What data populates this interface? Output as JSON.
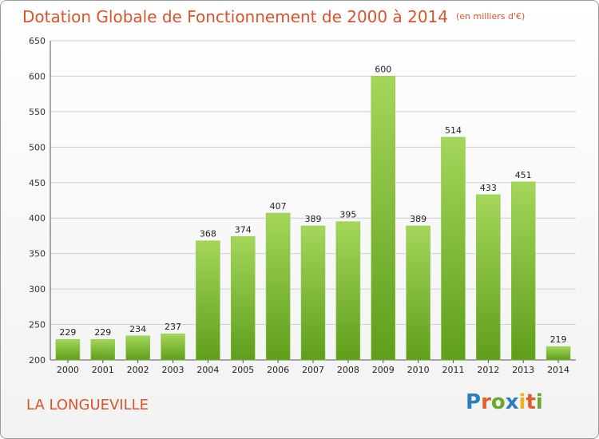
{
  "header": {
    "title": "Dotation Globale de Fonctionnement de 2000 à 2014",
    "unit": "(en milliers d'€)"
  },
  "footer": {
    "commune": "LA LONGUEVILLE",
    "logo": "Proxiti"
  },
  "colors": {
    "bar_top": "#a4d65a",
    "bar_bottom": "#5f9e1b",
    "title": "#d9542c",
    "grid": "#d0d0d0"
  },
  "chart_data": {
    "type": "bar",
    "categories": [
      "2000",
      "2001",
      "2002",
      "2003",
      "2004",
      "2005",
      "2006",
      "2007",
      "2008",
      "2009",
      "2010",
      "2011",
      "2012",
      "2013",
      "2014"
    ],
    "values": [
      229,
      229,
      234,
      237,
      368,
      374,
      407,
      389,
      395,
      600,
      389,
      514,
      433,
      451,
      219
    ],
    "yticks": [
      200,
      250,
      300,
      350,
      400,
      450,
      500,
      550,
      600,
      650
    ],
    "ylim": [
      200,
      650
    ],
    "grid": true,
    "legend": "none"
  }
}
